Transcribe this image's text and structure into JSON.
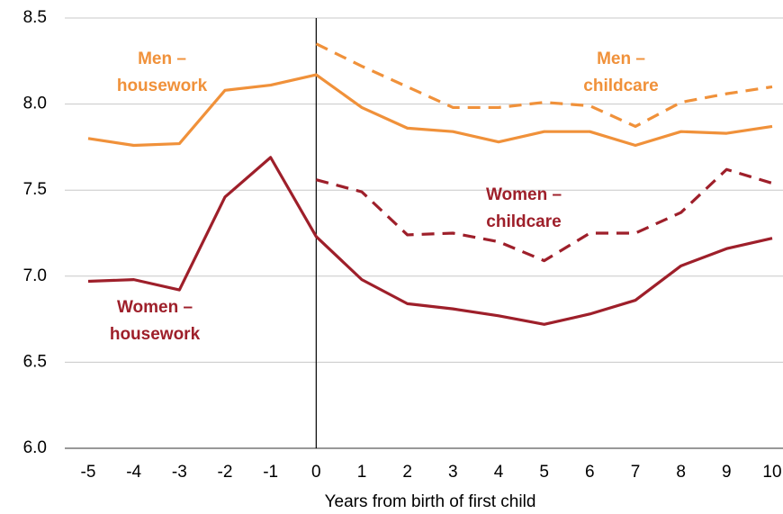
{
  "chart_data": {
    "type": "line",
    "x": [
      -5,
      -4,
      -3,
      -2,
      -1,
      0,
      1,
      2,
      3,
      4,
      5,
      6,
      7,
      8,
      9,
      10
    ],
    "xlim": [
      -5,
      10
    ],
    "xticks": [
      -5,
      -4,
      -3,
      -2,
      -1,
      0,
      1,
      2,
      3,
      4,
      5,
      6,
      7,
      8,
      9,
      10
    ],
    "xlabel": "Years from birth of first child",
    "ylim": [
      6.0,
      8.5
    ],
    "yticks": [
      {
        "value": 6.0,
        "label": "6.0"
      },
      {
        "value": 6.5,
        "label": "6.5"
      },
      {
        "value": 7.0,
        "label": "7.0"
      },
      {
        "value": 7.5,
        "label": "7.5"
      },
      {
        "value": 8.0,
        "label": "8.0"
      },
      {
        "value": 8.5,
        "label": "8.5"
      }
    ],
    "grid": true,
    "series": [
      {
        "name": [
          "Men –",
          "housework"
        ],
        "color": "#f0913a",
        "dashed": false,
        "values": [
          7.8,
          7.76,
          7.77,
          8.08,
          8.11,
          8.17,
          7.98,
          7.86,
          7.84,
          7.78,
          7.84,
          7.84,
          7.76,
          7.84,
          7.83,
          7.87
        ]
      },
      {
        "name": [
          "Men –",
          "childcare"
        ],
        "color": "#f0913a",
        "dashed": true,
        "values": [
          null,
          null,
          null,
          null,
          null,
          8.35,
          8.22,
          8.1,
          7.98,
          7.98,
          8.01,
          7.99,
          7.87,
          8.01,
          8.06,
          8.1
        ]
      },
      {
        "name": [
          "Women –",
          "childcare"
        ],
        "color": "#9e1f2a",
        "dashed": true,
        "values": [
          null,
          null,
          null,
          null,
          null,
          7.56,
          7.49,
          7.24,
          7.25,
          7.2,
          7.09,
          7.25,
          7.25,
          7.37,
          7.62,
          7.54
        ]
      },
      {
        "name": [
          "Women –",
          "housework"
        ],
        "color": "#9e1f2a",
        "dashed": false,
        "values": [
          6.97,
          6.98,
          6.92,
          7.46,
          7.69,
          7.23,
          6.98,
          6.84,
          6.81,
          6.77,
          6.72,
          6.78,
          6.86,
          7.06,
          7.16,
          7.22
        ]
      }
    ]
  }
}
